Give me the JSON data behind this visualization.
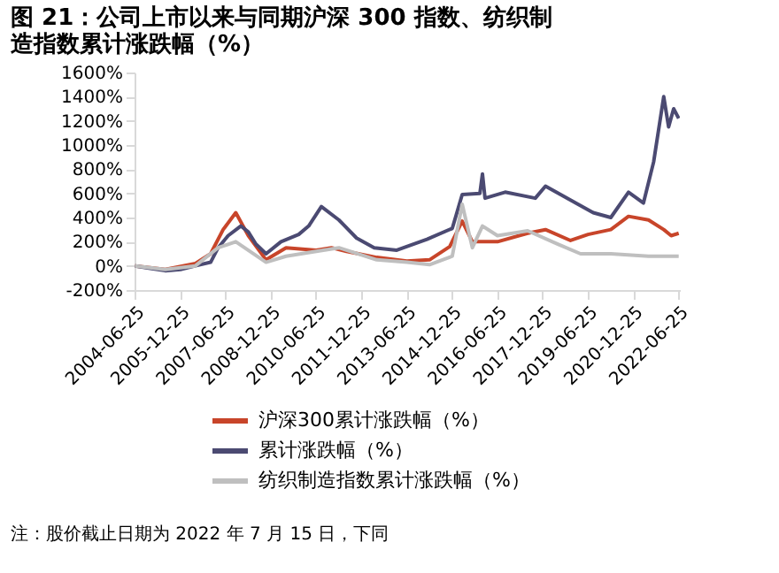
{
  "chart_data": {
    "type": "line",
    "title": "图 21：公司上市以来与同期沪深 300 指数、纺织制造指数累计涨跌幅（%）",
    "xlim": [
      "2004-06-25",
      "2022-07-15"
    ],
    "xticks": [
      "2004-06-25",
      "2005-12-25",
      "2007-06-25",
      "2008-12-25",
      "2010-06-25",
      "2011-12-25",
      "2013-06-25",
      "2014-12-25",
      "2016-06-25",
      "2017-12-25",
      "2019-06-25",
      "2020-12-25",
      "2022-06-25"
    ],
    "ylim": [
      -200,
      1600
    ],
    "yticks": [
      {
        "value": -200,
        "label": "-200%"
      },
      {
        "value": 0,
        "label": "0%"
      },
      {
        "value": 200,
        "label": "200%"
      },
      {
        "value": 400,
        "label": "400%"
      },
      {
        "value": 600,
        "label": "600%"
      },
      {
        "value": 800,
        "label": "800%"
      },
      {
        "value": 1000,
        "label": "1000%"
      },
      {
        "value": 1200,
        "label": "1200%"
      },
      {
        "value": 1400,
        "label": "1400%"
      },
      {
        "value": 1600,
        "label": "1600%"
      }
    ],
    "series": [
      {
        "name": "沪深300累计涨跌幅（%）",
        "color": "#c8452a",
        "x": [
          "2004-07",
          "2005-07",
          "2006-07",
          "2007-01",
          "2007-06",
          "2007-11",
          "2008-04",
          "2008-11",
          "2009-07",
          "2010-07",
          "2011-01",
          "2011-07",
          "2012-07",
          "2013-07",
          "2014-04",
          "2014-12",
          "2015-05",
          "2015-09",
          "2016-07",
          "2017-07",
          "2018-02",
          "2018-12",
          "2019-07",
          "2020-04",
          "2020-11",
          "2021-07",
          "2022-01",
          "2022-04",
          "2022-07"
        ],
        "values": [
          0,
          -30,
          20,
          100,
          300,
          440,
          250,
          50,
          150,
          130,
          150,
          120,
          70,
          40,
          50,
          160,
          370,
          200,
          200,
          270,
          300,
          210,
          260,
          300,
          410,
          380,
          300,
          250,
          270
        ]
      },
      {
        "name": "累计涨跌幅（%）",
        "color": "#4b4a72",
        "x": [
          "2004-07",
          "2005-01",
          "2005-07",
          "2006-01",
          "2006-07",
          "2007-01",
          "2007-04",
          "2007-08",
          "2008-01",
          "2008-04",
          "2008-07",
          "2008-11",
          "2009-05",
          "2009-12",
          "2010-04",
          "2010-09",
          "2011-04",
          "2011-11",
          "2012-06",
          "2013-03",
          "2014-03",
          "2015-01",
          "2015-05",
          "2015-12",
          "2016-01",
          "2016-02",
          "2016-10",
          "2017-10",
          "2018-02",
          "2019-02",
          "2019-09",
          "2020-04",
          "2020-11",
          "2021-05",
          "2021-09",
          "2022-01",
          "2022-03",
          "2022-05",
          "2022-07"
        ],
        "values": [
          0,
          -20,
          -40,
          -30,
          0,
          30,
          150,
          250,
          330,
          280,
          180,
          100,
          200,
          260,
          330,
          490,
          380,
          230,
          150,
          130,
          220,
          310,
          590,
          600,
          760,
          560,
          610,
          560,
          660,
          520,
          440,
          400,
          610,
          520,
          860,
          1400,
          1150,
          1300,
          1220
        ]
      },
      {
        "name": "纺织制造指数累计涨跌幅（%）",
        "color": "#bfbfbf",
        "x": [
          "2004-07",
          "2005-07",
          "2006-07",
          "2007-04",
          "2007-11",
          "2008-11",
          "2009-07",
          "2010-07",
          "2011-04",
          "2012-07",
          "2013-07",
          "2014-04",
          "2015-01",
          "2015-05",
          "2015-09",
          "2016-01",
          "2016-07",
          "2017-07",
          "2018-07",
          "2019-04",
          "2020-04",
          "2021-07",
          "2022-07"
        ],
        "values": [
          0,
          -30,
          0,
          150,
          200,
          30,
          80,
          120,
          150,
          50,
          30,
          10,
          80,
          510,
          150,
          330,
          250,
          290,
          180,
          100,
          100,
          80,
          80
        ]
      }
    ],
    "legend": "bottom",
    "grid": false,
    "marker": "none",
    "line_style": "solid",
    "annotations": [
      "注：股价截止日期为 2022 年 7 月 15 日，下同"
    ]
  }
}
